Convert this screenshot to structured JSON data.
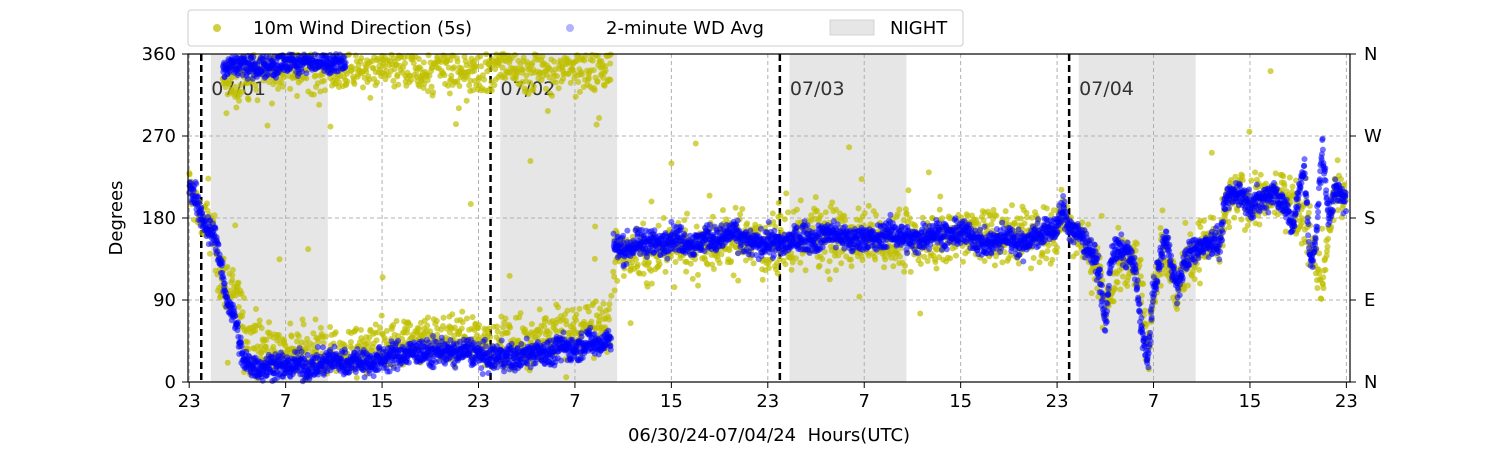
{
  "chart_data": {
    "type": "scatter",
    "xlabel": "06/30/24-07/04/24  Hours(UTC)",
    "ylabel": "Degrees",
    "xlim": [
      -0.1,
      96.3
    ],
    "ylim": [
      0,
      360
    ],
    "x_unit": "hours since 06/30/24 23:00 UTC",
    "xticks": [
      0,
      8,
      16,
      24,
      32,
      40,
      48,
      56,
      64,
      72,
      80,
      88,
      96
    ],
    "xtick_labels": [
      "23",
      "7",
      "15",
      "23",
      "7",
      "15",
      "23",
      "7",
      "15",
      "23",
      "7",
      "15",
      "23"
    ],
    "yticks": [
      0,
      90,
      180,
      270,
      360
    ],
    "ytick_labels": [
      "0",
      "90",
      "180",
      "270",
      "360"
    ],
    "right_ticks": [
      0,
      90,
      180,
      270,
      360
    ],
    "right_tick_labels": [
      "N",
      "E",
      "S",
      "W",
      "N"
    ],
    "grid": true,
    "legend_position": "top (above plot)",
    "colors": {
      "speed5s": "#bfbf00",
      "avg2min": "#0000ff",
      "night": "#e6e6e6",
      "divider": "#000000"
    },
    "day_dividers": [
      {
        "x": 1,
        "label": "07/01"
      },
      {
        "x": 25,
        "label": "07/02"
      },
      {
        "x": 49,
        "label": "07/03"
      },
      {
        "x": 73,
        "label": "07/04"
      }
    ],
    "night_periods": [
      [
        1.8,
        11.5
      ],
      [
        25.8,
        35.5
      ],
      [
        49.8,
        59.5
      ],
      [
        73.8,
        83.5
      ]
    ],
    "series": [
      {
        "name": "10m Wind Direction (5s)",
        "marker": "circle",
        "segments": [
          [
            [
              0,
              215
            ],
            [
              1,
              180
            ],
            [
              2,
              165
            ],
            [
              2.5,
              120
            ],
            [
              3,
              100
            ],
            [
              4,
              100
            ],
            [
              4.5,
              60
            ],
            [
              5,
              40
            ],
            [
              7,
              35
            ],
            [
              9,
              35
            ],
            [
              12,
              30
            ],
            [
              15,
              35
            ],
            [
              18,
              45
            ],
            [
              21,
              50
            ],
            [
              24,
              45
            ],
            [
              26,
              40
            ],
            [
              28,
              45
            ],
            [
              30,
              50
            ],
            [
              32,
              55
            ],
            [
              33,
              60
            ],
            [
              34,
              65
            ],
            [
              35,
              70
            ]
          ],
          [
            [
              2.8,
              330
            ],
            [
              4,
              335
            ],
            [
              6,
              340
            ],
            [
              8,
              345
            ],
            [
              10,
              345
            ],
            [
              12,
              350
            ],
            [
              15,
              345
            ],
            [
              18,
              345
            ],
            [
              21,
              345
            ],
            [
              24,
              345
            ],
            [
              27,
              345
            ],
            [
              30,
              345
            ],
            [
              33,
              345
            ],
            [
              35,
              345
            ]
          ],
          [
            [
              35.2,
              140
            ],
            [
              38,
              140
            ],
            [
              40,
              150
            ],
            [
              42,
              150
            ],
            [
              44,
              155
            ],
            [
              46,
              155
            ],
            [
              48,
              150
            ],
            [
              50,
              155
            ],
            [
              52,
              160
            ],
            [
              54,
              155
            ],
            [
              56,
              160
            ],
            [
              58,
              155
            ],
            [
              60,
              155
            ],
            [
              62,
              160
            ],
            [
              64,
              165
            ],
            [
              66,
              160
            ],
            [
              68,
              160
            ],
            [
              70,
              165
            ],
            [
              72,
              165
            ],
            [
              72.5,
              185
            ],
            [
              73,
              170
            ],
            [
              74,
              160
            ],
            [
              75.5,
              120
            ],
            [
              76,
              80
            ],
            [
              77,
              120
            ],
            [
              78,
              140
            ],
            [
              79,
              110
            ],
            [
              79.5,
              40
            ],
            [
              80,
              100
            ],
            [
              81,
              150
            ],
            [
              82,
              100
            ],
            [
              83,
              140
            ],
            [
              84,
              150
            ],
            [
              85,
              160
            ],
            [
              85.5,
              140
            ],
            [
              86,
              200
            ],
            [
              88,
              200
            ],
            [
              90,
              200
            ],
            [
              91,
              210
            ],
            [
              92,
              190
            ],
            [
              93,
              160
            ],
            [
              94,
              100
            ],
            [
              95,
              210
            ],
            [
              96,
              200
            ]
          ]
        ]
      },
      {
        "name": "2-minute WD Avg",
        "marker": "circle",
        "segments": [
          [
            [
              0,
              215
            ],
            [
              0.7,
              200
            ],
            [
              1.2,
              170
            ],
            [
              1.7,
              165
            ],
            [
              2.2,
              160
            ],
            [
              2.6,
              130
            ],
            [
              3,
              95
            ],
            [
              3.5,
              80
            ],
            [
              3.9,
              65
            ],
            [
              4.2,
              40
            ],
            [
              4.6,
              20
            ],
            [
              5,
              20
            ],
            [
              6,
              15
            ],
            [
              7,
              20
            ],
            [
              8,
              15
            ],
            [
              9,
              20
            ],
            [
              10,
              15
            ],
            [
              11,
              20
            ],
            [
              12,
              25
            ],
            [
              13,
              20
            ],
            [
              14,
              25
            ],
            [
              15,
              20
            ],
            [
              16,
              25
            ],
            [
              17,
              30
            ],
            [
              18,
              30
            ],
            [
              19,
              35
            ],
            [
              20,
              30
            ],
            [
              21,
              35
            ],
            [
              22,
              30
            ],
            [
              23,
              35
            ],
            [
              24,
              30
            ],
            [
              25,
              25
            ],
            [
              26,
              30
            ],
            [
              27,
              25
            ],
            [
              28,
              30
            ],
            [
              29,
              35
            ],
            [
              30,
              30
            ],
            [
              31,
              40
            ],
            [
              32,
              35
            ],
            [
              33,
              45
            ],
            [
              34,
              40
            ],
            [
              35,
              50
            ]
          ],
          [
            [
              2.8,
              345
            ],
            [
              4,
              350
            ],
            [
              6,
              345
            ],
            [
              8,
              350
            ],
            [
              10,
              355
            ],
            [
              12,
              350
            ],
            [
              13,
              355
            ]
          ],
          [
            [
              35.2,
              150
            ],
            [
              36,
              145
            ],
            [
              37,
              150
            ],
            [
              38,
              155
            ],
            [
              39,
              150
            ],
            [
              40,
              160
            ],
            [
              41,
              155
            ],
            [
              42,
              150
            ],
            [
              43,
              160
            ],
            [
              44,
              155
            ],
            [
              45,
              165
            ],
            [
              46,
              155
            ],
            [
              47,
              150
            ],
            [
              48,
              155
            ],
            [
              49,
              150
            ],
            [
              50,
              155
            ],
            [
              51,
              160
            ],
            [
              52,
              155
            ],
            [
              53,
              165
            ],
            [
              54,
              160
            ],
            [
              55,
              155
            ],
            [
              56,
              160
            ],
            [
              57,
              155
            ],
            [
              58,
              165
            ],
            [
              59,
              160
            ],
            [
              60,
              155
            ],
            [
              61,
              160
            ],
            [
              62,
              165
            ],
            [
              63,
              160
            ],
            [
              64,
              165
            ],
            [
              65,
              160
            ],
            [
              66,
              150
            ],
            [
              67,
              155
            ],
            [
              68,
              160
            ],
            [
              69,
              150
            ],
            [
              70,
              160
            ],
            [
              71,
              165
            ],
            [
              72,
              170
            ],
            [
              72.5,
              190
            ],
            [
              73,
              170
            ],
            [
              74,
              160
            ],
            [
              75,
              140
            ],
            [
              75.5,
              120
            ],
            [
              76,
              60
            ],
            [
              76.5,
              140
            ],
            [
              77,
              145
            ],
            [
              78,
              140
            ],
            [
              78.5,
              120
            ],
            [
              79,
              60
            ],
            [
              79.5,
              20
            ],
            [
              80,
              100
            ],
            [
              80.5,
              130
            ],
            [
              81,
              160
            ],
            [
              81.5,
              130
            ],
            [
              82,
              100
            ],
            [
              82.5,
              130
            ],
            [
              83,
              140
            ],
            [
              84,
              150
            ],
            [
              85,
              155
            ],
            [
              85.5,
              150
            ],
            [
              86,
              200
            ],
            [
              87,
              210
            ],
            [
              88,
              195
            ],
            [
              89,
              200
            ],
            [
              90,
              210
            ],
            [
              91,
              190
            ],
            [
              91.5,
              170
            ],
            [
              92,
              200
            ],
            [
              92.5,
              240
            ],
            [
              93,
              130
            ],
            [
              93.5,
              160
            ],
            [
              94,
              260
            ],
            [
              94.5,
              180
            ],
            [
              95,
              210
            ],
            [
              96,
              200
            ]
          ]
        ]
      }
    ]
  }
}
